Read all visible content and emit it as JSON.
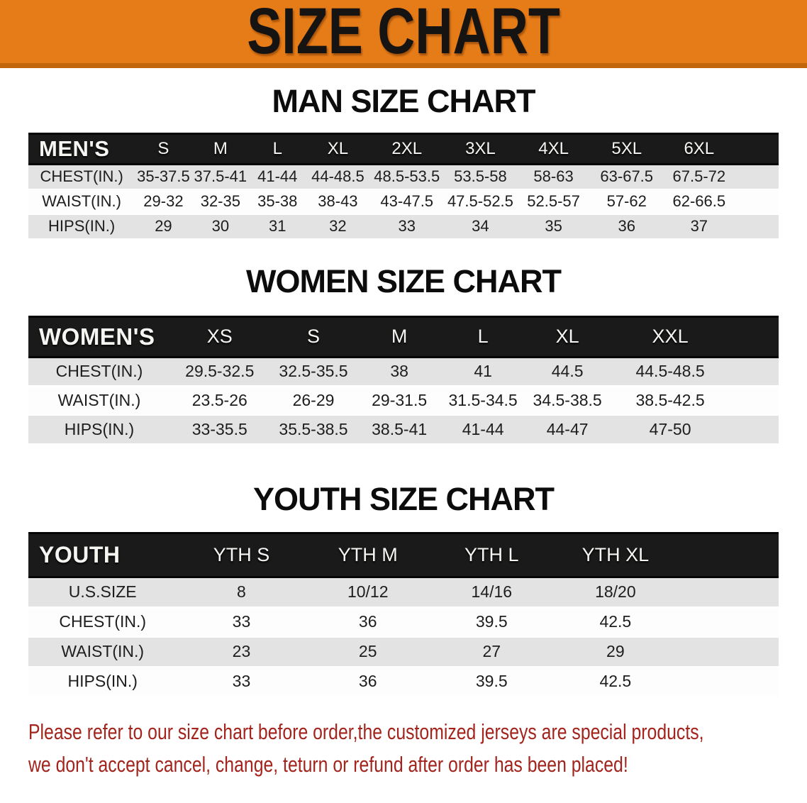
{
  "banner": {
    "title": "SIZE CHART",
    "background_color": "#e67c17",
    "edge_color": "#c2660e",
    "text_color": "#161413"
  },
  "sections": [
    {
      "title": "MAN SIZE CHART",
      "header_label": "MEN'S",
      "sizes": [
        "S",
        "M",
        "L",
        "XL",
        "2XL",
        "3XL",
        "4XL",
        "5XL",
        "6XL"
      ],
      "rows": [
        {
          "label": "CHEST(IN.)",
          "values": [
            "35-37.5",
            "37.5-41",
            "41-44",
            "44-48.5",
            "48.5-53.5",
            "53.5-58",
            "58-63",
            "63-67.5",
            "67.5-72"
          ]
        },
        {
          "label": "WAIST(IN.)",
          "values": [
            "29-32",
            "32-35",
            "35-38",
            "38-43",
            "43-47.5",
            "47.5-52.5",
            "52.5-57",
            "57-62",
            "62-66.5"
          ]
        },
        {
          "label": "HIPS(IN.)",
          "values": [
            "29",
            "30",
            "31",
            "32",
            "33",
            "34",
            "35",
            "36",
            "37"
          ]
        }
      ]
    },
    {
      "title": "WOMEN SIZE CHART",
      "header_label": "WOMEN'S",
      "sizes": [
        "XS",
        "S",
        "M",
        "L",
        "XL",
        "XXL"
      ],
      "rows": [
        {
          "label": "CHEST(IN.)",
          "values": [
            "29.5-32.5",
            "32.5-35.5",
            "38",
            "41",
            "44.5",
            "44.5-48.5"
          ]
        },
        {
          "label": "WAIST(IN.)",
          "values": [
            "23.5-26",
            "26-29",
            "29-31.5",
            "31.5-34.5",
            "34.5-38.5",
            "38.5-42.5"
          ]
        },
        {
          "label": "HIPS(IN.)",
          "values": [
            "33-35.5",
            "35.5-38.5",
            "38.5-41",
            "41-44",
            "44-47",
            "47-50"
          ]
        }
      ]
    },
    {
      "title": "YOUTH SIZE CHART",
      "header_label": "YOUTH",
      "sizes": [
        "YTH S",
        "YTH M",
        "YTH L",
        "YTH XL"
      ],
      "rows": [
        {
          "label": "U.S.SIZE",
          "values": [
            "8",
            "10/12",
            "14/16",
            "18/20"
          ]
        },
        {
          "label": "CHEST(IN.)",
          "values": [
            "33",
            "36",
            "39.5",
            "42.5"
          ]
        },
        {
          "label": "WAIST(IN.)",
          "values": [
            "23",
            "25",
            "27",
            "29"
          ]
        },
        {
          "label": "HIPS(IN.)",
          "values": [
            "33",
            "36",
            "39.5",
            "42.5"
          ]
        }
      ]
    }
  ],
  "note": {
    "line1": "Please refer to our size chart before order,the customized jerseys are special products,",
    "line2": "we don't accept cancel, change, teturn or refund after order has been placed!",
    "text_color": "#a3241d"
  }
}
